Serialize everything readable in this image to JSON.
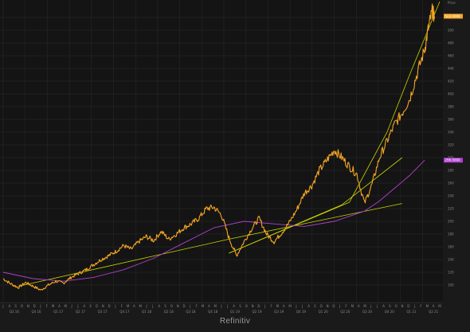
{
  "footer": {
    "brand": "Refinitiv"
  },
  "colors": {
    "background": "#141414",
    "panel": "#1a1a1a",
    "grid": "#2a2a2a",
    "price": "#f5a623",
    "moving_average": "#b040d0",
    "trendlines": "#c8d400",
    "price_flag": "#f5a623",
    "ma_flag": "#b040d0"
  },
  "chart_data": {
    "type": "line",
    "title": "",
    "xlabel": "",
    "ylabel": "",
    "ylim": [
      80,
      545
    ],
    "y_ticks": [
      100,
      120,
      140,
      160,
      180,
      200,
      220,
      240,
      260,
      280,
      300,
      320,
      340,
      360,
      380,
      400,
      420,
      440,
      460,
      480,
      500,
      520
    ],
    "y_unit_label": "Price",
    "price_flag": "522.0000",
    "ma_flag": "296.0000",
    "quarters": [
      "Q3 16",
      "Q4 16",
      "Q1 17",
      "Q2 17",
      "Q3 17",
      "Q4 17",
      "Q1 18",
      "Q2 18",
      "Q3 18",
      "Q4 18",
      "Q1 19",
      "Q2 19",
      "Q3 19",
      "Q4 19",
      "Q1 20",
      "Q2 20",
      "Q3 20",
      "Q4 20",
      "Q1 21",
      "Q2 21"
    ],
    "month_ticks": [
      "J",
      "A",
      "S",
      "O",
      "N",
      "D",
      "J",
      "F",
      "M",
      "A",
      "M",
      "J",
      "J",
      "A",
      "S",
      "O",
      "N",
      "D",
      "J",
      "F",
      "M",
      "A",
      "M",
      "J",
      "J",
      "A",
      "S",
      "O",
      "N",
      "D",
      "J",
      "F",
      "M",
      "A",
      "M",
      "J",
      "J",
      "A",
      "S",
      "O",
      "N",
      "D",
      "J",
      "F",
      "M",
      "A",
      "M",
      "J",
      "J",
      "A",
      "S",
      "O",
      "N",
      "D",
      "J",
      "F",
      "M",
      "A",
      "M",
      "J",
      "J",
      "A",
      "S",
      "O",
      "N",
      "D",
      "J",
      "F",
      "M",
      "A",
      "M"
    ],
    "x_domain": [
      0,
      58
    ],
    "series": [
      {
        "kind": "price",
        "points": [
          [
            0,
            110
          ],
          [
            1,
            102
          ],
          [
            2,
            96
          ],
          [
            3,
            104
          ],
          [
            4,
            98
          ],
          [
            5,
            92
          ],
          [
            6,
            100
          ],
          [
            7,
            106
          ],
          [
            8,
            103
          ],
          [
            9,
            112
          ],
          [
            10,
            118
          ],
          [
            11,
            124
          ],
          [
            12,
            132
          ],
          [
            13,
            140
          ],
          [
            14,
            146
          ],
          [
            15,
            153
          ],
          [
            16,
            162
          ],
          [
            17,
            156
          ],
          [
            18,
            168
          ],
          [
            19,
            176
          ],
          [
            20,
            170
          ],
          [
            21,
            184
          ],
          [
            22,
            172
          ],
          [
            23,
            180
          ],
          [
            24,
            190
          ],
          [
            25,
            196
          ],
          [
            26,
            205
          ],
          [
            27,
            220
          ],
          [
            28,
            222
          ],
          [
            29,
            210
          ],
          [
            30,
            174
          ],
          [
            31,
            146
          ],
          [
            32,
            168
          ],
          [
            33,
            188
          ],
          [
            34,
            205
          ],
          [
            35,
            180
          ],
          [
            36,
            168
          ],
          [
            37,
            182
          ],
          [
            38,
            198
          ],
          [
            39,
            218
          ],
          [
            40,
            244
          ],
          [
            41,
            256
          ],
          [
            42,
            280
          ],
          [
            43,
            296
          ],
          [
            44,
            312
          ],
          [
            45,
            300
          ],
          [
            46,
            286
          ],
          [
            47,
            274
          ],
          [
            48,
            228
          ],
          [
            49,
            258
          ],
          [
            50,
            300
          ],
          [
            51,
            326
          ],
          [
            52,
            352
          ],
          [
            53,
            370
          ],
          [
            54,
            392
          ],
          [
            55,
            432
          ],
          [
            56,
            470
          ],
          [
            56.5,
            504
          ],
          [
            57,
            530
          ],
          [
            57.3,
            522
          ]
        ]
      },
      {
        "kind": "moving_average",
        "points": [
          [
            0,
            120
          ],
          [
            4,
            110
          ],
          [
            8,
            106
          ],
          [
            12,
            112
          ],
          [
            16,
            124
          ],
          [
            20,
            142
          ],
          [
            24,
            166
          ],
          [
            28,
            190
          ],
          [
            32,
            200
          ],
          [
            36,
            196
          ],
          [
            40,
            192
          ],
          [
            44,
            200
          ],
          [
            48,
            216
          ],
          [
            50,
            232
          ],
          [
            52,
            252
          ],
          [
            54,
            272
          ],
          [
            55,
            284
          ],
          [
            56,
            296
          ]
        ]
      },
      {
        "kind": "trendline",
        "points": [
          [
            2,
            98
          ],
          [
            30,
            172
          ],
          [
            53,
            228
          ]
        ]
      },
      {
        "kind": "trendline",
        "points": [
          [
            30,
            150
          ],
          [
            45,
            226
          ],
          [
            53,
            300
          ]
        ]
      },
      {
        "kind": "trendline",
        "points": [
          [
            30,
            150
          ],
          [
            46,
            230
          ],
          [
            51,
            340
          ],
          [
            54,
            430
          ],
          [
            58,
            545
          ]
        ]
      }
    ]
  }
}
